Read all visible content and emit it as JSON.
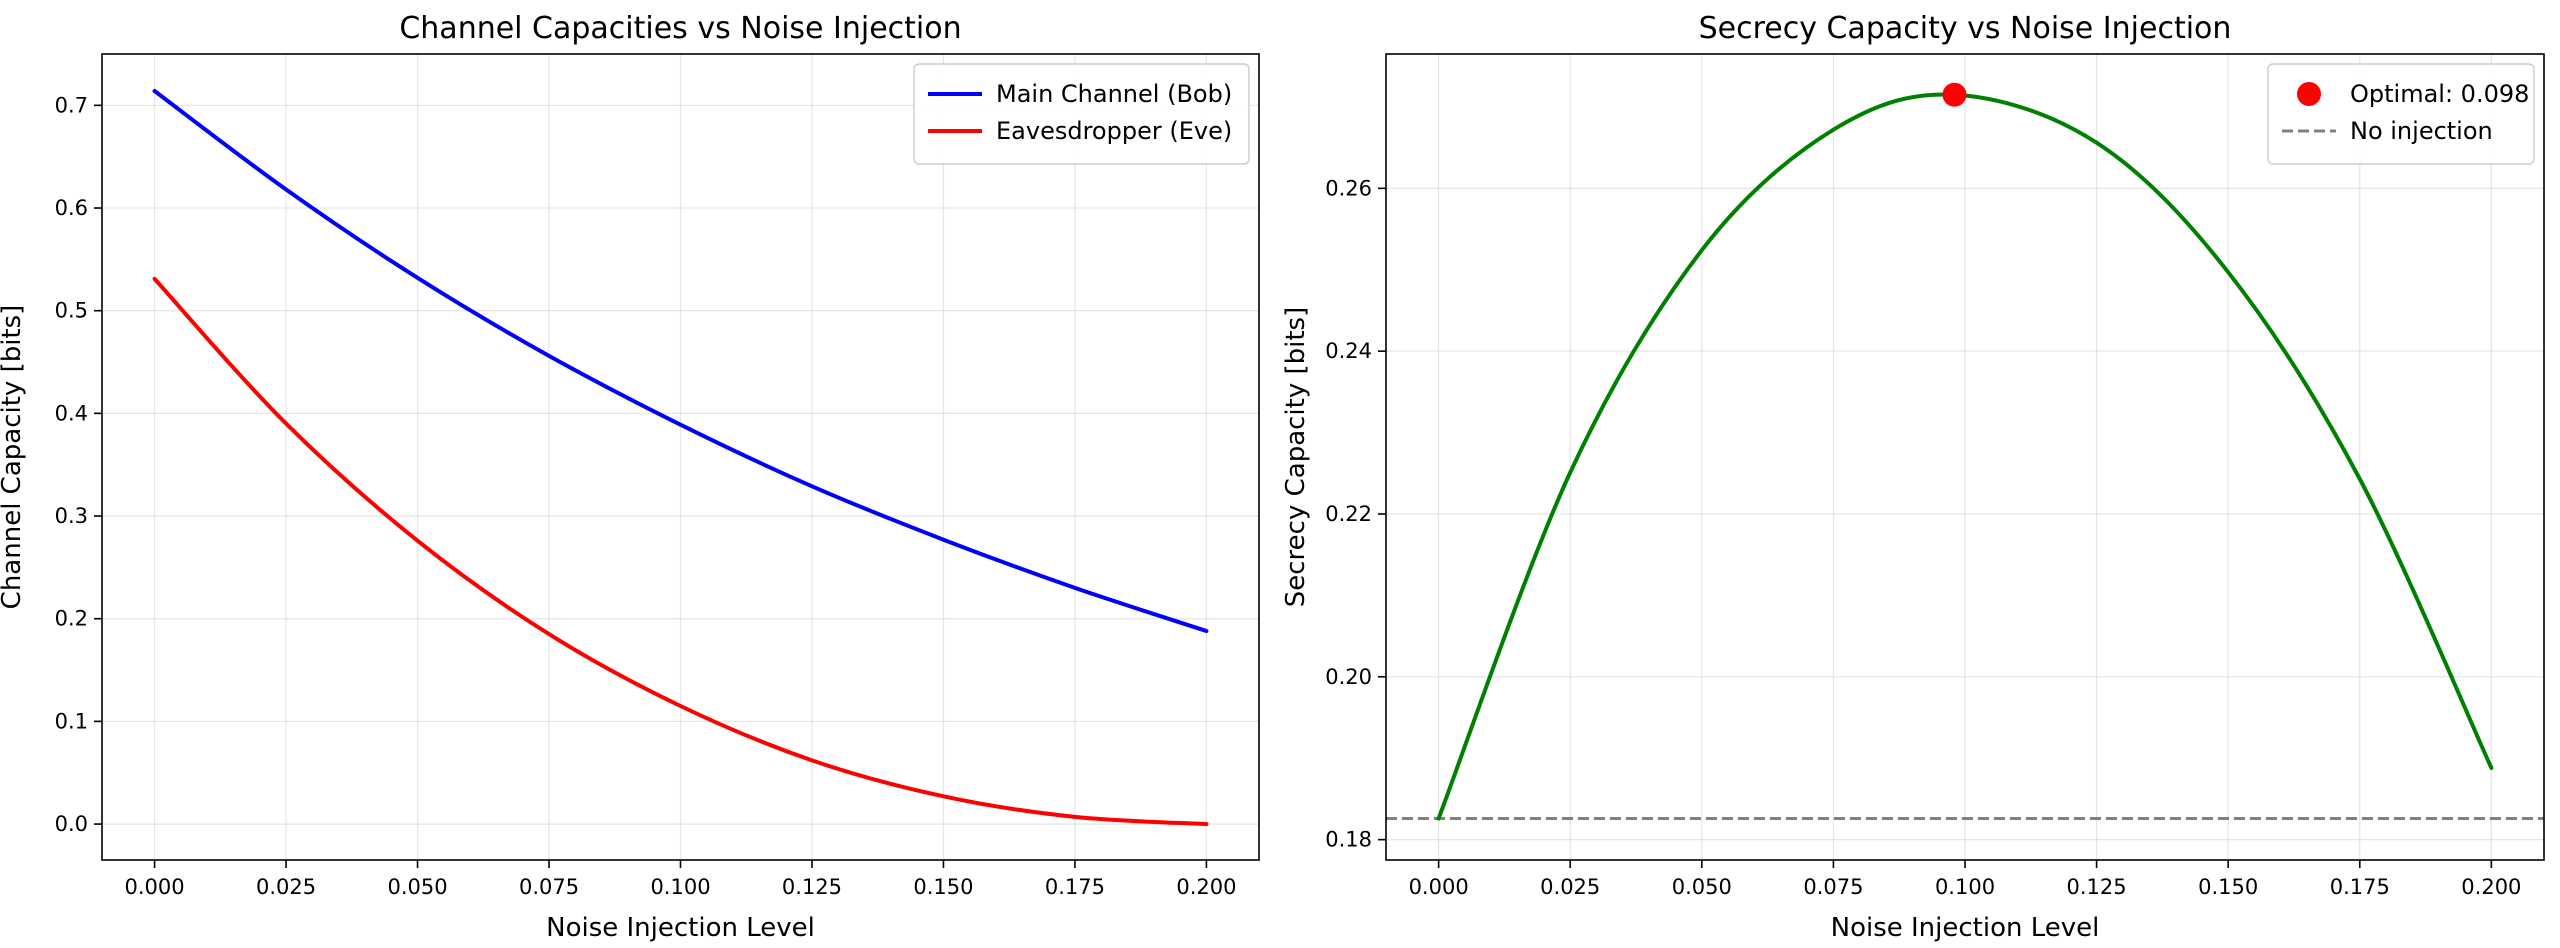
{
  "chart_data": [
    {
      "type": "line",
      "title": "Channel Capacities vs Noise Injection",
      "xlabel": "Noise Injection Level",
      "ylabel": "Channel Capacity [bits]",
      "xlim": [
        -0.01,
        0.21
      ],
      "ylim": [
        -0.035,
        0.75
      ],
      "xticks": [
        "0.000",
        "0.025",
        "0.050",
        "0.075",
        "0.100",
        "0.125",
        "0.150",
        "0.175",
        "0.200"
      ],
      "yticks": [
        "0.0",
        "0.1",
        "0.2",
        "0.3",
        "0.4",
        "0.5",
        "0.6",
        "0.7"
      ],
      "grid": true,
      "legend_position": "top-right",
      "x": [
        0.0,
        0.025,
        0.05,
        0.075,
        0.1,
        0.125,
        0.15,
        0.175,
        0.2
      ],
      "series": [
        {
          "name": "Main Channel (Bob)",
          "color": "#0000ff",
          "values": [
            0.714,
            0.618,
            0.532,
            0.456,
            0.389,
            0.329,
            0.277,
            0.23,
            0.188
          ]
        },
        {
          "name": "Eavesdropper (Eve)",
          "color": "#ff0000",
          "values": [
            0.531,
            0.39,
            0.276,
            0.185,
            0.115,
            0.062,
            0.027,
            0.007,
            0.0
          ]
        }
      ]
    },
    {
      "type": "line",
      "title": "Secrecy Capacity vs Noise Injection",
      "xlabel": "Noise Injection Level",
      "ylabel": "Secrecy Capacity [bits]",
      "xlim": [
        -0.01,
        0.21
      ],
      "ylim": [
        0.1775,
        0.2765
      ],
      "xticks": [
        "0.000",
        "0.025",
        "0.050",
        "0.075",
        "0.100",
        "0.125",
        "0.150",
        "0.175",
        "0.200"
      ],
      "yticks": [
        "0.18",
        "0.20",
        "0.22",
        "0.24",
        "0.26"
      ],
      "grid": true,
      "legend_position": "top-right",
      "x": [
        0.0,
        0.025,
        0.05,
        0.075,
        0.098,
        0.125,
        0.15,
        0.175,
        0.2
      ],
      "series": [
        {
          "name": "",
          "color": "#008000",
          "values": [
            0.1826,
            0.2251,
            0.2524,
            0.2672,
            0.2715,
            0.2656,
            0.2497,
            0.2243,
            0.1888
          ]
        }
      ],
      "optimal_point": {
        "label": "Optimal: 0.098",
        "x": 0.098,
        "y": 0.2715,
        "color": "#ff0000"
      },
      "reference_line": {
        "label": "No injection",
        "y": 0.1826,
        "color": "#808080",
        "style": "dashed"
      }
    }
  ]
}
